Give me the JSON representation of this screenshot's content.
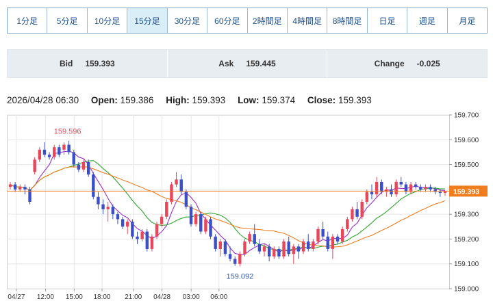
{
  "timeframes": [
    {
      "label": "1分足",
      "active": false
    },
    {
      "label": "5分足",
      "active": false
    },
    {
      "label": "10分足",
      "active": false
    },
    {
      "label": "15分足",
      "active": true
    },
    {
      "label": "30分足",
      "active": false
    },
    {
      "label": "60分足",
      "active": false
    },
    {
      "label": "2時間足",
      "active": false
    },
    {
      "label": "4時間足",
      "active": false
    },
    {
      "label": "8時間足",
      "active": false
    },
    {
      "label": "日足",
      "active": false
    },
    {
      "label": "週足",
      "active": false
    },
    {
      "label": "月足",
      "active": false
    }
  ],
  "quote": {
    "bid_label": "Bid",
    "bid_value": "159.393",
    "ask_label": "Ask",
    "ask_value": "159.445",
    "change_label": "Change",
    "change_value": "-0.025"
  },
  "ohlc": {
    "timestamp": "2026/04/28 06:30",
    "open_label": "Open:",
    "open": "159.386",
    "high_label": "High:",
    "high": "159.393",
    "low_label": "Low:",
    "low": "159.374",
    "close_label": "Close:",
    "close": "159.393"
  },
  "colors": {
    "up": "#e8465a",
    "down": "#3b4fc8",
    "ma_short": "#9b30c8",
    "ma_mid": "#2ea52e",
    "ma_long": "#f07d1e",
    "price_tag": "#f07d1e"
  },
  "chart_data": {
    "type": "candlestick",
    "ylim": [
      159.0,
      159.7
    ],
    "yticks": [
      "159.700",
      "159.600",
      "159.500",
      "159.400",
      "159.300",
      "159.200",
      "159.100",
      "159.000"
    ],
    "xticks": [
      "04/27",
      "12:00",
      "15:00",
      "18:00",
      "21:00",
      "04/28",
      "03:00",
      "06:00"
    ],
    "current_price": "159.393",
    "high_annotation": "159.596",
    "low_annotation": "159.092",
    "candles": [
      [
        159.41,
        159.43,
        159.4,
        159.42
      ],
      [
        159.42,
        159.43,
        159.39,
        159.4
      ],
      [
        159.4,
        159.42,
        159.39,
        159.41
      ],
      [
        159.41,
        159.42,
        159.38,
        159.4
      ],
      [
        159.4,
        159.41,
        159.34,
        159.35
      ],
      [
        159.47,
        159.53,
        159.46,
        159.52
      ],
      [
        159.52,
        159.57,
        159.51,
        159.56
      ],
      [
        159.56,
        159.59,
        159.53,
        159.54
      ],
      [
        159.54,
        159.55,
        159.52,
        159.53
      ],
      [
        159.53,
        159.58,
        159.52,
        159.57
      ],
      [
        159.57,
        159.58,
        159.53,
        159.54
      ],
      [
        159.56,
        159.59,
        159.54,
        159.58
      ],
      [
        159.58,
        159.596,
        159.54,
        159.55
      ],
      [
        159.55,
        159.56,
        159.49,
        159.5
      ],
      [
        159.5,
        159.51,
        159.47,
        159.48
      ],
      [
        159.48,
        159.52,
        159.47,
        159.51
      ],
      [
        159.51,
        159.52,
        159.45,
        159.46
      ],
      [
        159.46,
        159.47,
        159.36,
        159.37
      ],
      [
        159.37,
        159.39,
        159.32,
        159.34
      ],
      [
        159.34,
        159.36,
        159.3,
        159.32
      ],
      [
        159.32,
        159.35,
        159.27,
        159.33
      ],
      [
        159.33,
        159.34,
        159.28,
        159.3
      ],
      [
        159.3,
        159.31,
        159.26,
        159.28
      ],
      [
        159.28,
        159.29,
        159.24,
        159.25
      ],
      [
        159.25,
        159.28,
        159.22,
        159.27
      ],
      [
        159.27,
        159.28,
        159.2,
        159.21
      ],
      [
        159.21,
        159.23,
        159.18,
        159.2
      ],
      [
        159.2,
        159.24,
        159.19,
        159.23
      ],
      [
        159.23,
        159.24,
        159.15,
        159.16
      ],
      [
        159.16,
        159.22,
        159.15,
        159.21
      ],
      [
        159.21,
        159.27,
        159.2,
        159.26
      ],
      [
        159.26,
        159.3,
        159.25,
        159.29
      ],
      [
        159.29,
        159.36,
        159.28,
        159.35
      ],
      [
        159.35,
        159.43,
        159.34,
        159.42
      ],
      [
        159.42,
        159.47,
        159.41,
        159.44
      ],
      [
        159.44,
        159.46,
        159.38,
        159.39
      ],
      [
        159.39,
        159.4,
        159.32,
        159.33
      ],
      [
        159.33,
        159.34,
        159.25,
        159.26
      ],
      [
        159.26,
        159.31,
        159.25,
        159.3
      ],
      [
        159.3,
        159.31,
        159.22,
        159.23
      ],
      [
        159.23,
        159.29,
        159.22,
        159.28
      ],
      [
        159.28,
        159.29,
        159.2,
        159.21
      ],
      [
        159.21,
        159.22,
        159.15,
        159.16
      ],
      [
        159.16,
        159.2,
        159.13,
        159.19
      ],
      [
        159.19,
        159.2,
        159.13,
        159.14
      ],
      [
        159.14,
        159.17,
        159.11,
        159.12
      ],
      [
        159.12,
        159.13,
        159.092,
        159.1
      ],
      [
        159.1,
        159.15,
        159.09,
        159.14
      ],
      [
        159.14,
        159.2,
        159.13,
        159.19
      ],
      [
        159.19,
        159.23,
        159.18,
        159.22
      ],
      [
        159.22,
        159.26,
        159.17,
        159.18
      ],
      [
        159.18,
        159.2,
        159.14,
        159.15
      ],
      [
        159.15,
        159.18,
        159.13,
        159.17
      ],
      [
        159.17,
        159.18,
        159.11,
        159.13
      ],
      [
        159.13,
        159.17,
        159.12,
        159.16
      ],
      [
        159.16,
        159.17,
        159.12,
        159.13
      ],
      [
        159.13,
        159.2,
        159.12,
        159.19
      ],
      [
        159.19,
        159.21,
        159.13,
        159.14
      ],
      [
        159.14,
        159.18,
        159.1,
        159.17
      ],
      [
        159.17,
        159.18,
        159.12,
        159.15
      ],
      [
        159.15,
        159.2,
        159.14,
        159.19
      ],
      [
        159.19,
        159.22,
        159.15,
        159.16
      ],
      [
        159.16,
        159.2,
        159.15,
        159.19
      ],
      [
        159.19,
        159.25,
        159.18,
        159.24
      ],
      [
        159.24,
        159.27,
        159.2,
        159.21
      ],
      [
        159.21,
        159.23,
        159.15,
        159.16
      ],
      [
        159.16,
        159.22,
        159.12,
        159.21
      ],
      [
        159.21,
        159.22,
        159.18,
        159.19
      ],
      [
        159.19,
        159.25,
        159.18,
        159.24
      ],
      [
        159.24,
        159.29,
        159.23,
        159.28
      ],
      [
        159.28,
        159.33,
        159.27,
        159.32
      ],
      [
        159.32,
        159.35,
        159.28,
        159.29
      ],
      [
        159.29,
        159.36,
        159.28,
        159.35
      ],
      [
        159.35,
        159.4,
        159.34,
        159.39
      ],
      [
        159.39,
        159.42,
        159.36,
        159.38
      ],
      [
        159.38,
        159.45,
        159.37,
        159.43
      ],
      [
        159.43,
        159.44,
        159.38,
        159.39
      ],
      [
        159.39,
        159.41,
        159.37,
        159.4
      ],
      [
        159.4,
        159.42,
        159.37,
        159.38
      ],
      [
        159.38,
        159.44,
        159.37,
        159.43
      ],
      [
        159.43,
        159.45,
        159.41,
        159.42
      ],
      [
        159.42,
        159.43,
        159.38,
        159.39
      ],
      [
        159.39,
        159.43,
        159.38,
        159.42
      ],
      [
        159.42,
        159.43,
        159.4,
        159.41
      ],
      [
        159.41,
        159.42,
        159.39,
        159.4
      ],
      [
        159.4,
        159.42,
        159.39,
        159.41
      ],
      [
        159.41,
        159.42,
        159.39,
        159.4
      ],
      [
        159.4,
        159.41,
        159.38,
        159.39
      ],
      [
        159.39,
        159.4,
        159.37,
        159.386
      ],
      [
        159.386,
        159.393,
        159.374,
        159.393
      ]
    ]
  }
}
